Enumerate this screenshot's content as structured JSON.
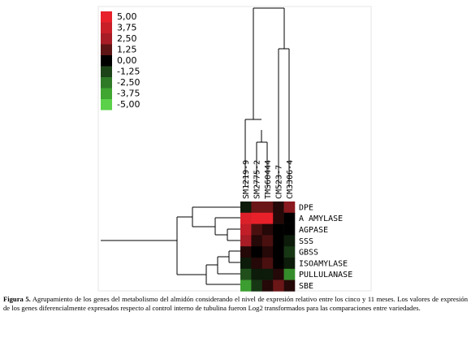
{
  "chart_data": {
    "type": "heatmap",
    "columns": [
      "SM1219-9",
      "SM2775-2",
      "TMS60444",
      "CM523-7",
      "CM3306-4"
    ],
    "rows": [
      "DPE",
      "A AMYLASE",
      "AGPASE",
      "SSS",
      "GBSS",
      "ISOAMYLASE",
      "PULLULANASE",
      "SBE"
    ],
    "values": [
      [
        -0.5,
        1.5,
        1.5,
        0.5,
        2.0
      ],
      [
        4.5,
        5.0,
        5.0,
        0.5,
        0.0
      ],
      [
        3.5,
        1.0,
        0.5,
        0.0,
        0.0
      ],
      [
        2.5,
        0.5,
        1.0,
        0.0,
        -0.5
      ],
      [
        0.5,
        0.0,
        0.5,
        0.0,
        -1.0
      ],
      [
        -0.5,
        0.5,
        1.0,
        0.0,
        -0.5
      ],
      [
        -1.5,
        -0.5,
        -0.5,
        0.5,
        -3.0
      ],
      [
        -3.5,
        -1.0,
        0.5,
        1.5,
        0.5
      ]
    ],
    "legend": [
      "5,00",
      "3,75",
      "2,50",
      "1,25",
      "0,00",
      "-1,25",
      "-2,50",
      "-3,75",
      "-5,00"
    ],
    "legend_colors": [
      "#e8202a",
      "#c81f29",
      "#a71c25",
      "#5c1414",
      "#000000",
      "#1d4419",
      "#2f7a26",
      "#3fa632",
      "#5bd14a"
    ],
    "range": [
      -5,
      5
    ]
  },
  "caption": {
    "label": "Figura 5.",
    "text": "Agrupamiento de los genes del metabolismo del almidón considerando el nivel de expresión relativo entre los cinco y 11 meses. Los valores de expresión de los genes diferencialmente expresados respecto al control interno de tubulina fueron Log2 transformados para las comparaciones entre variedades."
  }
}
